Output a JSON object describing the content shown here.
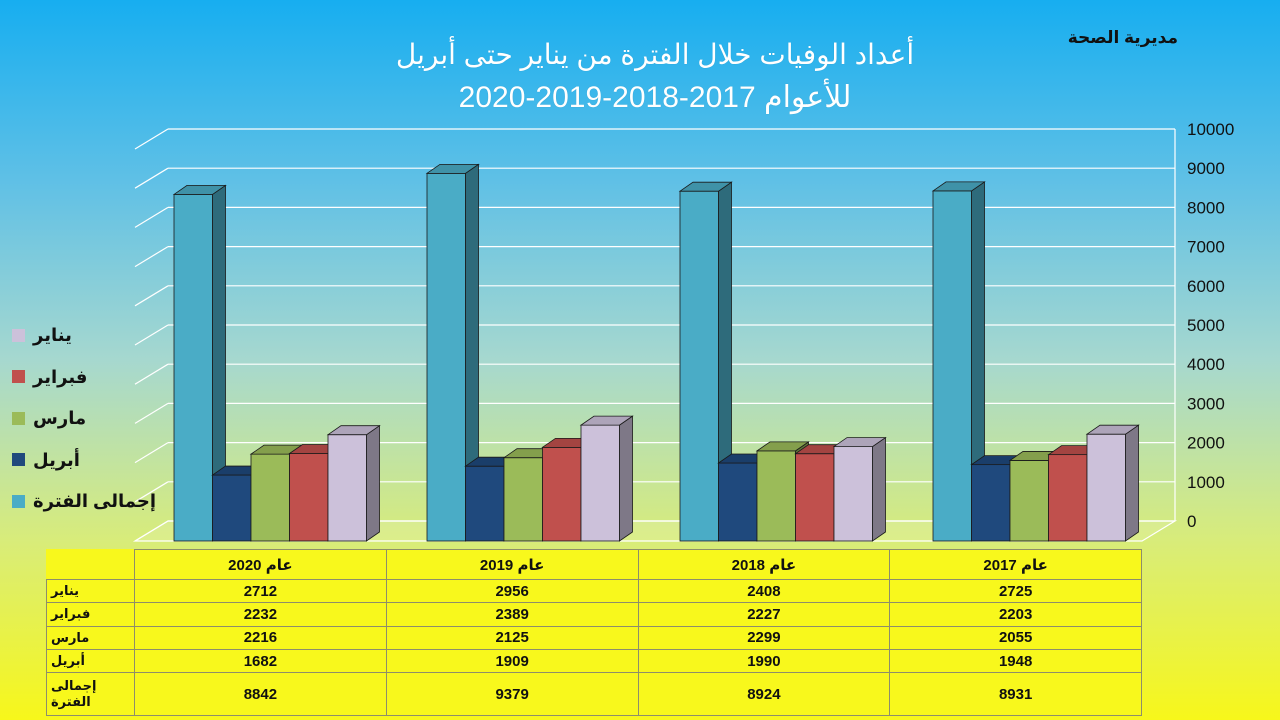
{
  "organization": "مديرية الصحة",
  "title_line1": "أعداد الوفيات خلال الفترة من يناير حتى أبريل",
  "title_line2": "للأعوام 2017-2018-2019-2020",
  "chart_data": {
    "type": "bar",
    "categories": [
      "عام 2020",
      "عام 2019",
      "عام 2018",
      "عام 2017"
    ],
    "series": [
      {
        "name": "إجمالى الفترة",
        "color": "#4aacc6",
        "values": [
          8842,
          9379,
          8924,
          8931
        ]
      },
      {
        "name": "أبريل",
        "color": "#1f497d",
        "values": [
          1682,
          1909,
          1990,
          1948
        ]
      },
      {
        "name": "مارس",
        "color": "#9bbb59",
        "values": [
          2216,
          2125,
          2299,
          2055
        ]
      },
      {
        "name": "فبراير",
        "color": "#c0504d",
        "values": [
          2232,
          2389,
          2227,
          2203
        ]
      },
      {
        "name": "يناير",
        "color": "#ccc1da",
        "values": [
          2712,
          2956,
          2408,
          2725
        ]
      }
    ],
    "ylim": [
      0,
      10000
    ],
    "y_ticks": [
      0,
      1000,
      2000,
      3000,
      4000,
      5000,
      6000,
      7000,
      8000,
      9000,
      10000
    ],
    "grid": true,
    "legend_position": "left",
    "y_axis_position": "right"
  },
  "legend": [
    {
      "label": "يناير",
      "color": "#ccc1da"
    },
    {
      "label": "فبراير",
      "color": "#c0504d"
    },
    {
      "label": "مارس",
      "color": "#9bbb59"
    },
    {
      "label": "أبريل",
      "color": "#1f497d"
    },
    {
      "label": "إجمالى الفترة",
      "color": "#4aacc6"
    }
  ],
  "table": {
    "headers": [
      "عام 2020",
      "عام 2019",
      "عام 2018",
      "عام 2017"
    ],
    "rows": [
      {
        "label": "يناير",
        "values": [
          "2712",
          "2956",
          "2408",
          "2725"
        ]
      },
      {
        "label": "فبراير",
        "values": [
          "2232",
          "2389",
          "2227",
          "2203"
        ]
      },
      {
        "label": "مارس",
        "values": [
          "2216",
          "2125",
          "2299",
          "2055"
        ]
      },
      {
        "label": "أبريل",
        "values": [
          "1682",
          "1909",
          "1990",
          "1948"
        ]
      },
      {
        "label": "إجمالى الفترة",
        "values": [
          "8842",
          "9379",
          "8924",
          "8931"
        ]
      }
    ]
  }
}
